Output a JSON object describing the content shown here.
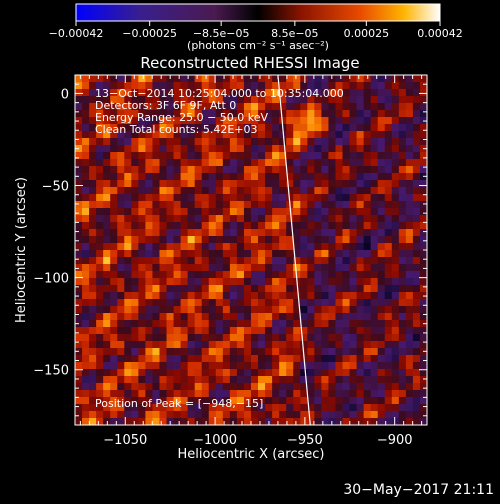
{
  "chart_data": {
    "type": "heatmap",
    "title": "Reconstructed RHESSI Image",
    "xlabel": "Heliocentric X (arcsec)",
    "ylabel": "Heliocentric Y (arcsec)",
    "xlim": [
      -1078,
      -882
    ],
    "ylim": [
      -180,
      10
    ],
    "xticks": [
      -1050,
      -1000,
      -950,
      -900
    ],
    "xtick_labels": [
      "−1050",
      "−1000",
      "−950",
      "−900"
    ],
    "yticks": [
      0,
      -50,
      -100,
      -150
    ],
    "ytick_labels": [
      "0",
      "−50",
      "−100",
      "−150"
    ],
    "colorbar": {
      "min": -0.00042,
      "max": 0.00042,
      "ticks": [
        -0.00042,
        -0.00025,
        -8.5e-05,
        8.5e-05,
        0.00025,
        0.00042
      ],
      "tick_labels": [
        "−0.00042",
        "−0.00025",
        "−8.5e−05",
        "8.5e−05",
        "0.00025",
        "0.00042"
      ],
      "unit_label": "(photons cm⁻² s⁻¹ asec⁻²)"
    },
    "annotations": [
      "13−Oct−2014 10:25:04.000 to 10:35:04.000",
      "Detectors: 3F 6F 9F, Att 0",
      "Energy Range: 25.0 − 50.0 keV",
      "Clean    Total counts: 5.42E+03"
    ],
    "peak_text": "Position of Peak = [−948,−15]",
    "peak": [
      -948,
      -15
    ],
    "limb_line": [
      [
        -965,
        10
      ],
      [
        -947,
        -180
      ]
    ],
    "grid": false
  },
  "timestamp": "30−May−2017 21:11"
}
